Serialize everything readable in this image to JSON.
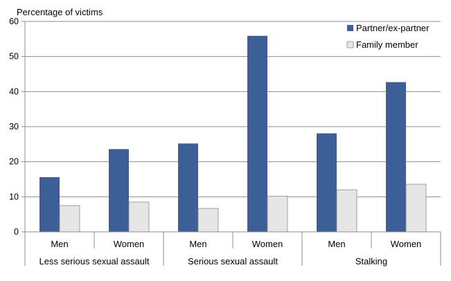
{
  "chart_data": {
    "type": "bar",
    "ylabel": "Percentage of victims",
    "ylim": [
      0,
      60
    ],
    "yticks": [
      0,
      10,
      20,
      30,
      40,
      50,
      60
    ],
    "grid": true,
    "legend_position": "top-right",
    "groups": [
      {
        "label": "Less serious sexual assault",
        "categories": [
          "Men",
          "Women"
        ]
      },
      {
        "label": "Serious sexual assault",
        "categories": [
          "Men",
          "Women"
        ]
      },
      {
        "label": "Stalking",
        "categories": [
          "Men",
          "Women"
        ]
      }
    ],
    "categories": [
      "Men",
      "Women",
      "Men",
      "Women",
      "Men",
      "Women"
    ],
    "series": [
      {
        "name": "Partner/ex-partner",
        "color": "#3b5f96",
        "values": [
          15.6,
          23.6,
          25.2,
          55.9,
          28.1,
          42.7
        ]
      },
      {
        "name": "Family member",
        "color": "#e6e6e6",
        "values": [
          7.5,
          8.5,
          6.7,
          10.2,
          12.0,
          13.6
        ]
      }
    ]
  }
}
